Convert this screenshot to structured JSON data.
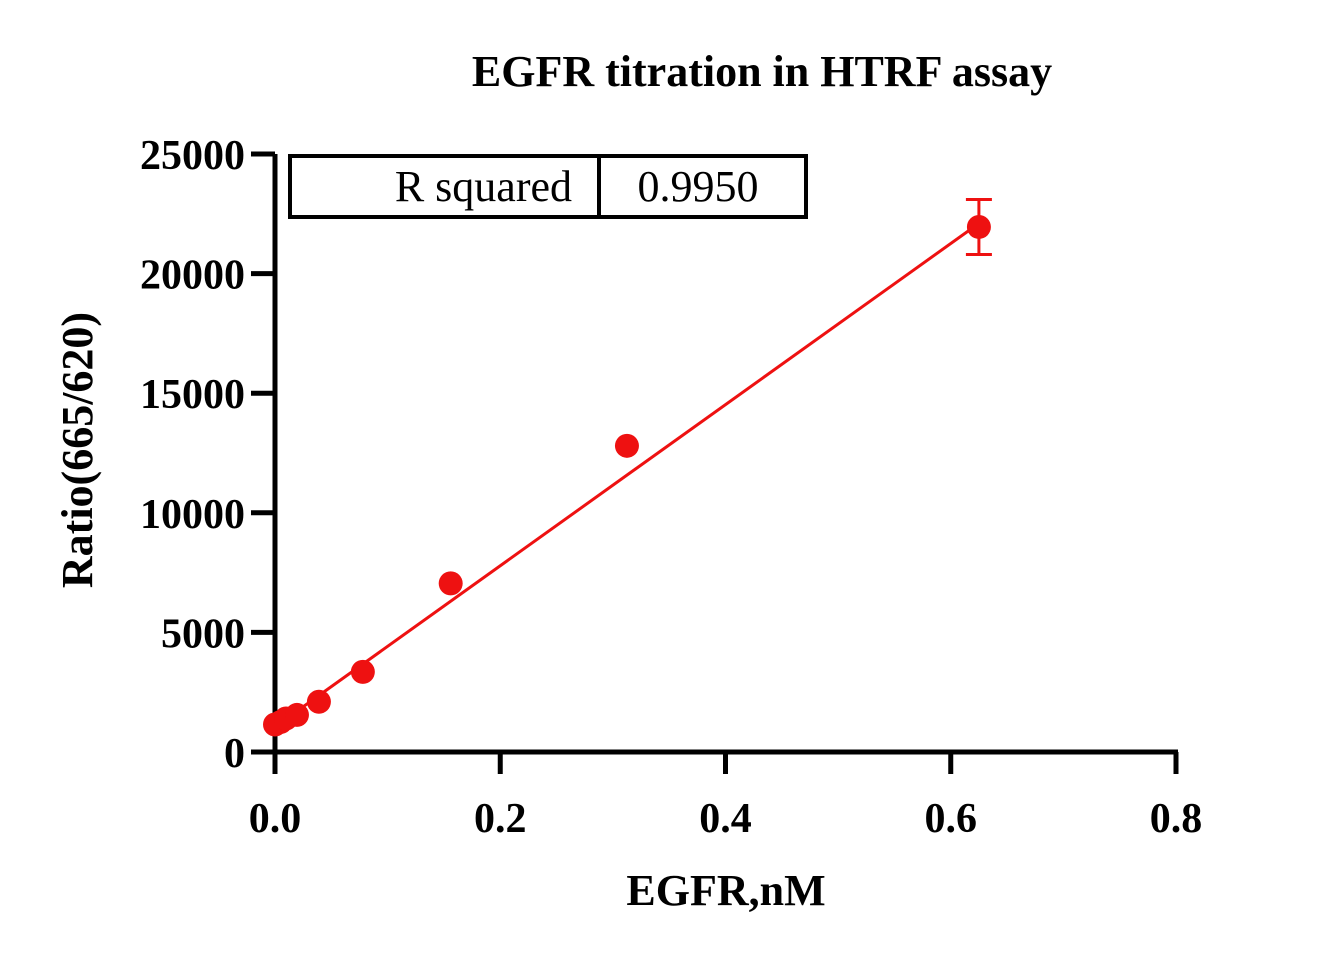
{
  "chart_data": {
    "type": "scatter",
    "title": "EGFR titration in HTRF assay",
    "xlabel": "EGFR,nM",
    "ylabel": "Ratio(665/620)",
    "xlim": [
      0,
      0.8
    ],
    "ylim": [
      0,
      25000
    ],
    "x_ticks": [
      0.0,
      0.2,
      0.4,
      0.6,
      0.8
    ],
    "x_tick_labels": [
      "0.0",
      "0.2",
      "0.4",
      "0.6",
      "0.8"
    ],
    "y_ticks": [
      0,
      5000,
      10000,
      15000,
      20000,
      25000
    ],
    "y_tick_labels": [
      "0",
      "5000",
      "10000",
      "15000",
      "20000",
      "25000"
    ],
    "grid": false,
    "series": [
      {
        "points": [
          {
            "x": 0.0,
            "y": 1150,
            "err": 0
          },
          {
            "x": 0.0049,
            "y": 1250,
            "err": 0
          },
          {
            "x": 0.0098,
            "y": 1400,
            "err": 0
          },
          {
            "x": 0.0195,
            "y": 1550,
            "err": 0
          },
          {
            "x": 0.039,
            "y": 2100,
            "err": 0
          },
          {
            "x": 0.078,
            "y": 3350,
            "err": 0
          },
          {
            "x": 0.156,
            "y": 7050,
            "err": 0
          },
          {
            "x": 0.3125,
            "y": 12800,
            "err": 0
          },
          {
            "x": 0.625,
            "y": 21950,
            "err": 1150
          }
        ],
        "color": "#ee1111"
      }
    ],
    "fit_line": {
      "type": "linear",
      "x_start": 0.0,
      "y_start": 1050,
      "x_end": 0.625,
      "y_end": 22100,
      "color": "#ee1111"
    },
    "annotation_table": {
      "label": "R squared",
      "value": "0.9950"
    }
  }
}
